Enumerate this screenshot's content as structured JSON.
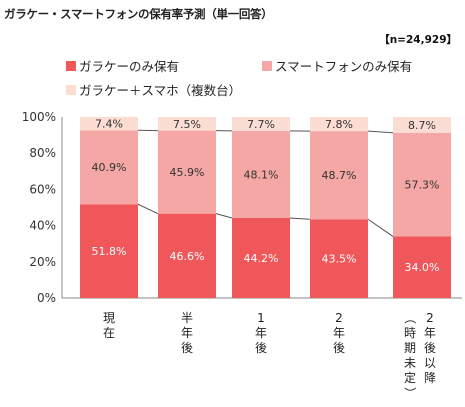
{
  "title": "ガラケー・スマートフォンの保有率予測（単一回答）",
  "sample_label": "【n=24,929】",
  "colors": {
    "series1": "#f0575a",
    "series2": "#f4a7a4",
    "series3": "#fbddd3",
    "label_light": "#ffffff",
    "label_dark": "#333333",
    "connector": "#555555"
  },
  "chart_data": {
    "type": "bar",
    "stacked": true,
    "categories": [
      "現在",
      "半年後",
      "1年後",
      "2年後",
      "2年後以降（時期未定）"
    ],
    "series": [
      {
        "name": "ガラケーのみ保有",
        "values": [
          51.8,
          46.6,
          44.2,
          43.5,
          34.0
        ],
        "labels": [
          "51.8%",
          "46.6%",
          "44.2%",
          "43.5%",
          "34.0%"
        ]
      },
      {
        "name": "スマートフォンのみ保有",
        "values": [
          40.9,
          45.9,
          48.1,
          48.7,
          57.3
        ],
        "labels": [
          "40.9%",
          "45.9%",
          "48.1%",
          "48.7%",
          "57.3%"
        ]
      },
      {
        "name": "ガラケー＋スマホ（複数台）",
        "values": [
          7.4,
          7.5,
          7.7,
          7.8,
          8.7
        ],
        "labels": [
          "7.4%",
          "7.5%",
          "7.7%",
          "7.8%",
          "8.7%"
        ]
      }
    ],
    "ylim": [
      0,
      100
    ],
    "yticks": [
      "0%",
      "20%",
      "40%",
      "60%",
      "80%",
      "100%"
    ],
    "grid": false,
    "legend_position": "top-left"
  }
}
